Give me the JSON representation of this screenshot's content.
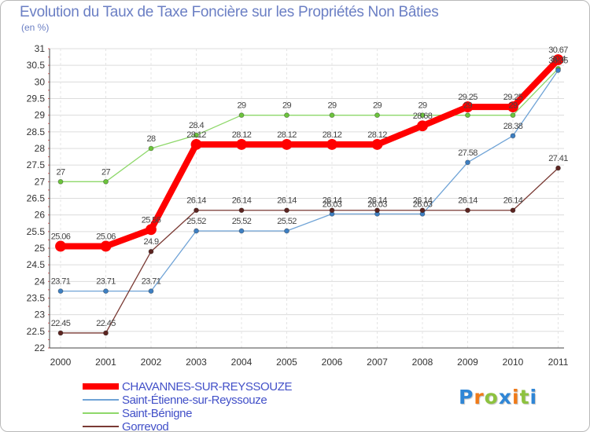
{
  "chart_data": {
    "type": "line",
    "title": "Evolution du Taux de Taxe Foncière sur les Propriétés Non Bâties",
    "ylabel": "(en %)",
    "xlabel": "",
    "categories": [
      "2000",
      "2001",
      "2002",
      "2003",
      "2004",
      "2005",
      "2006",
      "2007",
      "2008",
      "2009",
      "2010",
      "2011"
    ],
    "ylim": [
      22,
      31
    ],
    "yticks": [
      22,
      22.5,
      23,
      23.5,
      24,
      24.5,
      25,
      25.5,
      26,
      26.5,
      27,
      27.5,
      28,
      28.5,
      29,
      29.5,
      30,
      30.5,
      31
    ],
    "grid": true,
    "series": [
      {
        "name": "Saint-Bénigne",
        "color": "#8ed86a",
        "dot": "#6cc43c",
        "values": [
          27,
          27,
          28,
          28.4,
          29,
          29,
          29,
          29,
          29,
          29,
          29,
          30.4
        ],
        "labels": [
          "27",
          "27",
          "28",
          "28.4",
          "29",
          "29",
          "29",
          "29",
          "29",
          "29",
          "29",
          "30.4"
        ]
      },
      {
        "name": "Saint-Étienne-sur-Reyssouze",
        "color": "#6fa3d6",
        "dot": "#3d7fc2",
        "values": [
          23.71,
          23.71,
          23.71,
          25.52,
          25.52,
          25.52,
          26.03,
          26.03,
          26.03,
          27.58,
          28.38,
          30.35
        ],
        "labels": [
          "23.71",
          "23.71",
          "23.71",
          "25.52",
          "25.52",
          "25.52",
          "26.03",
          "26.03",
          "26.03",
          "27.58",
          "28.38",
          "30.35"
        ]
      },
      {
        "name": "Gorrevod",
        "color": "#7a3a34",
        "dot": "#5c2420",
        "values": [
          22.45,
          22.45,
          24.9,
          26.14,
          26.14,
          26.14,
          26.14,
          26.14,
          26.14,
          26.14,
          26.14,
          27.41
        ],
        "labels": [
          "22.45",
          "22.45",
          "24.9",
          "26.14",
          "26.14",
          "26.14",
          "26.14",
          "26.14",
          "26.14",
          "26.14",
          "26.14",
          "27.41"
        ]
      },
      {
        "name": "CHAVANNES-SUR-REYSSOUZE",
        "color": "#ff0000",
        "dot": "#ff0000",
        "values": [
          25.06,
          25.06,
          25.56,
          28.12,
          28.12,
          28.12,
          28.12,
          28.12,
          28.68,
          29.25,
          29.25,
          30.67
        ],
        "labels": [
          "25.06",
          "25.06",
          "25.56",
          "28.12",
          "28.12",
          "28.12",
          "28.12",
          "28.12",
          "28.68",
          "29.25",
          "29.25",
          "30.67"
        ]
      }
    ],
    "legend": [
      {
        "name": "CHAVANNES-SUR-REYSSOUZE",
        "color": "#ff0000",
        "thick": true
      },
      {
        "name": "Saint-Étienne-sur-Reyssouze",
        "color": "#6fa3d6",
        "thick": false
      },
      {
        "name": "Saint-Bénigne",
        "color": "#8ed86a",
        "thick": false
      },
      {
        "name": "Gorrevod",
        "color": "#7a3a34",
        "thick": false
      }
    ]
  },
  "brand": {
    "letters": [
      "P",
      "r",
      "o",
      "x",
      "i",
      "t",
      "i"
    ],
    "colors": [
      "#2f86d6",
      "#f07a18",
      "#8dc23f",
      "#2f86d6",
      "#f07a18",
      "#8dc23f",
      "#2f86d6"
    ]
  }
}
